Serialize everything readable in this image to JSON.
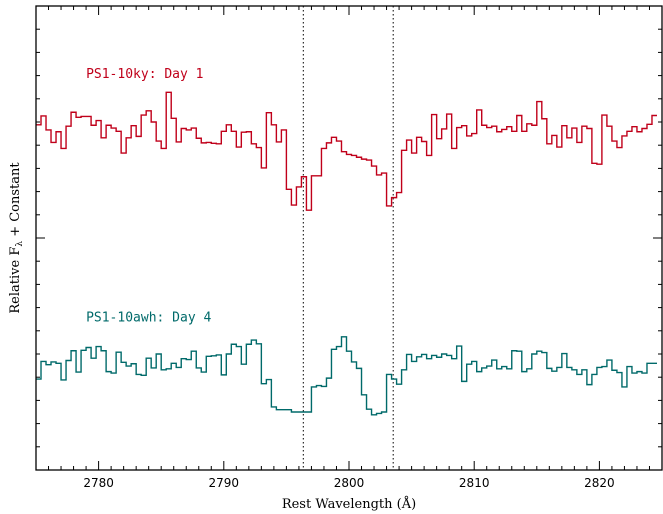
{
  "chart_data": {
    "type": "line",
    "style": "step",
    "title": "",
    "xlabel": "Rest Wavelength (Å)",
    "ylabel": "Relative F",
    "ylabel_sub": "λ",
    "ylabel_tail": " + Constant",
    "xlim": [
      2775,
      2825
    ],
    "ylim": [
      0,
      1
    ],
    "xticks": [
      2780,
      2790,
      2800,
      2810,
      2820
    ],
    "xtick_labels": [
      "2780",
      "2790",
      "2800",
      "2810",
      "2820"
    ],
    "grid": false,
    "vlines": [
      2796.35,
      2803.53
    ],
    "yticks_shown": false,
    "series": [
      {
        "name": "PS1-10ky: Day 1",
        "color": "#c0001a",
        "x": [
          2775.0,
          2775.4,
          2775.8,
          2776.2,
          2776.6,
          2777.0,
          2777.4,
          2777.8,
          2778.2,
          2778.6,
          2779.0,
          2779.4,
          2779.8,
          2780.2,
          2780.6,
          2781.0,
          2781.4,
          2781.8,
          2782.2,
          2782.6,
          2783.0,
          2783.4,
          2783.8,
          2784.2,
          2784.6,
          2785.0,
          2785.4,
          2785.8,
          2786.2,
          2786.6,
          2787.0,
          2787.4,
          2787.8,
          2788.2,
          2788.6,
          2789.0,
          2789.4,
          2789.8,
          2790.2,
          2790.6,
          2791.0,
          2791.4,
          2791.8,
          2792.2,
          2792.6,
          2793.0,
          2793.4,
          2793.8,
          2794.2,
          2794.6,
          2795.0,
          2795.4,
          2795.8,
          2796.2,
          2796.6,
          2797.0,
          2797.4,
          2797.8,
          2798.2,
          2798.6,
          2799.0,
          2799.4,
          2799.8,
          2800.2,
          2800.6,
          2801.0,
          2801.4,
          2801.8,
          2802.2,
          2802.6,
          2803.0,
          2803.4,
          2803.8,
          2804.2,
          2804.6,
          2805.0,
          2805.4,
          2805.8,
          2806.2,
          2806.6,
          2807.0,
          2807.4,
          2807.8,
          2808.2,
          2808.6,
          2809.0,
          2809.4,
          2809.8,
          2810.2,
          2810.6,
          2811.0,
          2811.4,
          2811.8,
          2812.2,
          2812.6,
          2813.0,
          2813.4,
          2813.8,
          2814.2,
          2814.6,
          2815.0,
          2815.4,
          2815.8,
          2816.2,
          2816.6,
          2817.0,
          2817.4,
          2817.8,
          2818.2,
          2818.6,
          2819.0,
          2819.4,
          2819.8,
          2820.2,
          2820.6,
          2821.0,
          2821.4,
          2821.8,
          2822.2,
          2822.6,
          2823.0,
          2823.4,
          2823.8,
          2824.2
        ],
        "values": [
          0.744,
          0.763,
          0.733,
          0.706,
          0.729,
          0.693,
          0.741,
          0.771,
          0.76,
          0.762,
          0.762,
          0.743,
          0.753,
          0.716,
          0.743,
          0.737,
          0.73,
          0.683,
          0.716,
          0.742,
          0.719,
          0.765,
          0.774,
          0.75,
          0.709,
          0.693,
          0.814,
          0.758,
          0.707,
          0.736,
          0.733,
          0.737,
          0.715,
          0.705,
          0.706,
          0.704,
          0.703,
          0.73,
          0.744,
          0.73,
          0.696,
          0.728,
          0.729,
          0.703,
          0.695,
          0.651,
          0.77,
          0.744,
          0.707,
          0.733,
          0.605,
          0.571,
          0.61,
          0.632,
          0.56,
          0.634,
          0.634,
          0.693,
          0.705,
          0.717,
          0.709,
          0.686,
          0.68,
          0.678,
          0.674,
          0.67,
          0.668,
          0.655,
          0.636,
          0.64,
          0.569,
          0.587,
          0.598,
          0.689,
          0.711,
          0.683,
          0.717,
          0.708,
          0.678,
          0.766,
          0.714,
          0.735,
          0.767,
          0.693,
          0.738,
          0.742,
          0.72,
          0.725,
          0.776,
          0.743,
          0.738,
          0.741,
          0.729,
          0.734,
          0.74,
          0.73,
          0.764,
          0.73,
          0.746,
          0.743,
          0.794,
          0.757,
          0.703,
          0.721,
          0.696,
          0.742,
          0.716,
          0.737,
          0.706,
          0.741,
          0.736,
          0.661,
          0.659,
          0.765,
          0.741,
          0.709,
          0.695,
          0.72,
          0.73,
          0.74,
          0.729,
          0.736,
          0.745,
          0.764
        ]
      },
      {
        "name": "PS1-10awh: Day 4",
        "color": "#006a6a",
        "x": [
          2775.0,
          2775.4,
          2775.8,
          2776.2,
          2776.6,
          2777.0,
          2777.4,
          2777.8,
          2778.2,
          2778.6,
          2779.0,
          2779.4,
          2779.8,
          2780.2,
          2780.6,
          2781.0,
          2781.4,
          2781.8,
          2782.2,
          2782.6,
          2783.0,
          2783.4,
          2783.8,
          2784.2,
          2784.6,
          2785.0,
          2785.4,
          2785.8,
          2786.2,
          2786.6,
          2787.0,
          2787.4,
          2787.8,
          2788.2,
          2788.6,
          2789.0,
          2789.4,
          2789.8,
          2790.2,
          2790.6,
          2791.0,
          2791.4,
          2791.8,
          2792.2,
          2792.6,
          2793.0,
          2793.4,
          2793.8,
          2794.2,
          2794.6,
          2795.0,
          2795.4,
          2795.8,
          2796.2,
          2796.6,
          2797.0,
          2797.4,
          2797.8,
          2798.2,
          2798.6,
          2799.0,
          2799.4,
          2799.8,
          2800.2,
          2800.6,
          2801.0,
          2801.4,
          2801.8,
          2802.2,
          2802.6,
          2803.0,
          2803.4,
          2803.8,
          2804.2,
          2804.6,
          2805.0,
          2805.4,
          2805.8,
          2806.2,
          2806.6,
          2807.0,
          2807.4,
          2807.8,
          2808.2,
          2808.6,
          2809.0,
          2809.4,
          2809.8,
          2810.2,
          2810.6,
          2811.0,
          2811.4,
          2811.8,
          2812.2,
          2812.6,
          2813.0,
          2813.4,
          2813.8,
          2814.2,
          2814.6,
          2815.0,
          2815.4,
          2815.8,
          2816.2,
          2816.6,
          2817.0,
          2817.4,
          2817.8,
          2818.2,
          2818.6,
          2819.0,
          2819.4,
          2819.8,
          2820.2,
          2820.6,
          2821.0,
          2821.4,
          2821.8,
          2822.2,
          2822.6,
          2823.0,
          2823.4,
          2823.8,
          2824.2
        ],
        "values": [
          0.196,
          0.234,
          0.227,
          0.233,
          0.23,
          0.194,
          0.236,
          0.257,
          0.211,
          0.258,
          0.264,
          0.241,
          0.266,
          0.257,
          0.212,
          0.209,
          0.254,
          0.232,
          0.224,
          0.229,
          0.206,
          0.204,
          0.241,
          0.22,
          0.25,
          0.216,
          0.218,
          0.23,
          0.221,
          0.24,
          0.238,
          0.256,
          0.22,
          0.211,
          0.245,
          0.246,
          0.248,
          0.205,
          0.25,
          0.271,
          0.266,
          0.228,
          0.271,
          0.28,
          0.272,
          0.186,
          0.195,
          0.136,
          0.13,
          0.13,
          0.13,
          0.125,
          0.125,
          0.125,
          0.125,
          0.179,
          0.182,
          0.18,
          0.198,
          0.26,
          0.266,
          0.287,
          0.256,
          0.233,
          0.219,
          0.162,
          0.131,
          0.119,
          0.122,
          0.125,
          0.206,
          0.196,
          0.185,
          0.216,
          0.249,
          0.234,
          0.244,
          0.249,
          0.24,
          0.247,
          0.243,
          0.25,
          0.247,
          0.24,
          0.267,
          0.191,
          0.228,
          0.234,
          0.212,
          0.22,
          0.224,
          0.237,
          0.218,
          0.223,
          0.218,
          0.257,
          0.256,
          0.212,
          0.218,
          0.25,
          0.256,
          0.253,
          0.219,
          0.213,
          0.221,
          0.251,
          0.221,
          0.216,
          0.206,
          0.216,
          0.184,
          0.206,
          0.221,
          0.223,
          0.237,
          0.215,
          0.21,
          0.179,
          0.223,
          0.209,
          0.212,
          0.209,
          0.23,
          0.23
        ]
      }
    ]
  }
}
